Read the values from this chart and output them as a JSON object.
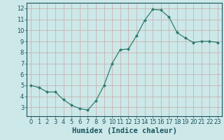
{
  "x": [
    0,
    1,
    2,
    3,
    4,
    5,
    6,
    7,
    8,
    9,
    10,
    11,
    12,
    13,
    14,
    15,
    16,
    17,
    18,
    19,
    20,
    21,
    22,
    23
  ],
  "y": [
    5.0,
    4.8,
    4.4,
    4.4,
    3.7,
    3.2,
    2.9,
    2.75,
    3.6,
    5.0,
    7.0,
    8.25,
    8.3,
    9.5,
    10.9,
    11.9,
    11.85,
    11.2,
    9.8,
    9.3,
    8.9,
    9.0,
    9.0,
    8.9
  ],
  "line_color": "#2e7d6e",
  "marker": "D",
  "marker_size": 2.0,
  "bg_color": "#cce8e8",
  "grid_color": "#c8a8a8",
  "xlabel": "Humidex (Indice chaleur)",
  "xlim": [
    -0.5,
    23.5
  ],
  "ylim": [
    2.2,
    12.5
  ],
  "yticks": [
    3,
    4,
    5,
    6,
    7,
    8,
    9,
    10,
    11,
    12
  ],
  "xticks": [
    0,
    1,
    2,
    3,
    4,
    5,
    6,
    7,
    8,
    9,
    10,
    11,
    12,
    13,
    14,
    15,
    16,
    17,
    18,
    19,
    20,
    21,
    22,
    23
  ],
  "tick_color": "#1a5560",
  "label_fontsize": 7.5,
  "tick_labelsize": 6.0
}
